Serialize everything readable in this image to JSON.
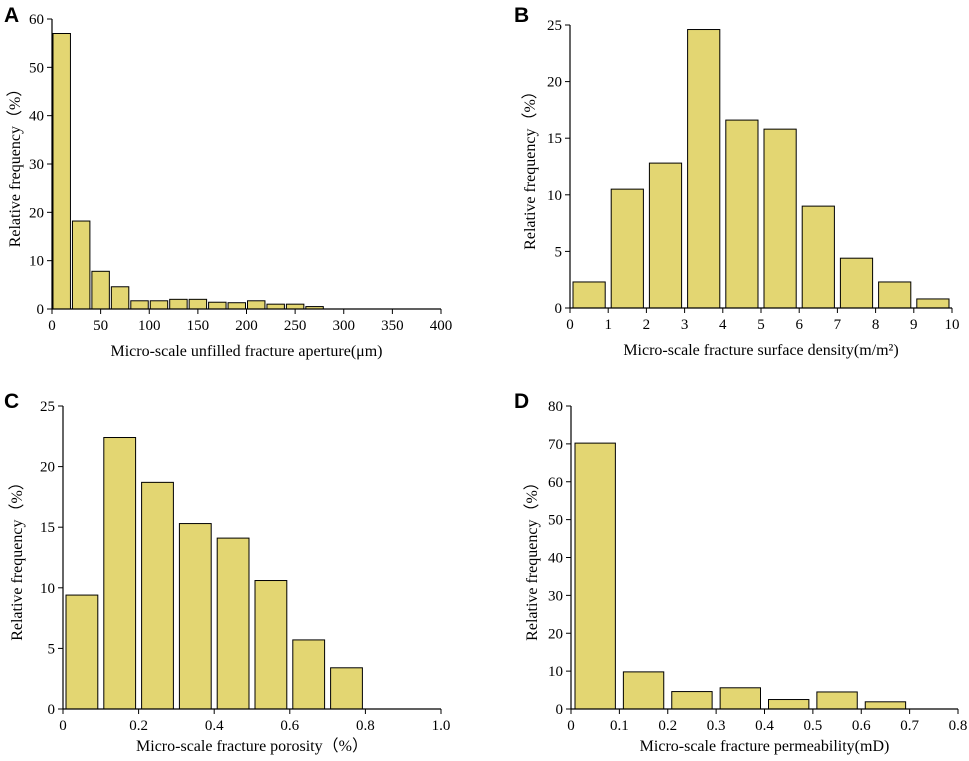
{
  "figure": {
    "background": "#ffffff",
    "bar_color": "#e3d672",
    "bar_edge_color": "#000000"
  },
  "chart_data": [
    {
      "type": "bar",
      "panel": "A",
      "xlabel": "Micro-scale unfilled fracture aperture(μm)",
      "ylabel": "Relative frequency（%）",
      "xlim": [
        0,
        400
      ],
      "ylim": [
        0,
        60
      ],
      "xticks": [
        0,
        50,
        100,
        150,
        200,
        250,
        300,
        350,
        400
      ],
      "yticks": [
        0,
        10,
        20,
        30,
        40,
        50,
        60
      ],
      "bin_edges": [
        0,
        20,
        40,
        60,
        80,
        100,
        120,
        140,
        160,
        180,
        200,
        220,
        240,
        260,
        280
      ],
      "values": [
        57,
        18.2,
        7.8,
        4.6,
        1.7,
        1.7,
        2.0,
        2.0,
        1.4,
        1.3,
        1.7,
        1.0,
        1.0,
        0.5
      ]
    },
    {
      "type": "bar",
      "panel": "B",
      "xlabel": "Micro-scale fracture surface density(m/m²)",
      "ylabel": "Relative frequency（%）",
      "xlim": [
        0,
        10
      ],
      "ylim": [
        0,
        25
      ],
      "xticks": [
        0,
        1,
        2,
        3,
        4,
        5,
        6,
        7,
        8,
        9,
        10
      ],
      "yticks": [
        0,
        5,
        10,
        15,
        20,
        25
      ],
      "bin_edges": [
        0,
        1,
        2,
        3,
        4,
        5,
        6,
        7,
        8,
        9,
        10
      ],
      "values": [
        2.3,
        10.5,
        12.8,
        24.6,
        16.6,
        15.8,
        9.0,
        4.4,
        2.3,
        0.8
      ]
    },
    {
      "type": "bar",
      "panel": "C",
      "xlabel": "Micro-scale fracture porosity（%）",
      "ylabel": "Relative frequency（%）",
      "xlim": [
        0,
        1.0
      ],
      "ylim": [
        0,
        25
      ],
      "xticks": [
        "0",
        "0.2",
        "0.4",
        "0.6",
        "0.8",
        "1.0"
      ],
      "yticks": [
        0,
        5,
        10,
        15,
        20,
        25
      ],
      "bin_edges": [
        0,
        0.1,
        0.2,
        0.3,
        0.4,
        0.5,
        0.6,
        0.7,
        0.8
      ],
      "values": [
        9.4,
        22.4,
        18.7,
        15.3,
        14.1,
        10.6,
        5.7,
        3.4
      ]
    },
    {
      "type": "bar",
      "panel": "D",
      "xlabel": "Micro-scale fracture permeability(mD)",
      "ylabel": "Relative frequency（%）",
      "xlim": [
        0,
        0.8
      ],
      "ylim": [
        0,
        80
      ],
      "xticks": [
        "0",
        "0.1",
        "0.2",
        "0.3",
        "0.4",
        "0.5",
        "0.6",
        "0.7",
        "0.8"
      ],
      "yticks": [
        0,
        10,
        20,
        30,
        40,
        50,
        60,
        70,
        80
      ],
      "bin_edges": [
        0,
        0.1,
        0.2,
        0.3,
        0.4,
        0.5,
        0.6,
        0.7
      ],
      "values": [
        70.2,
        9.8,
        4.6,
        5.6,
        2.5,
        4.5,
        1.9
      ]
    }
  ]
}
